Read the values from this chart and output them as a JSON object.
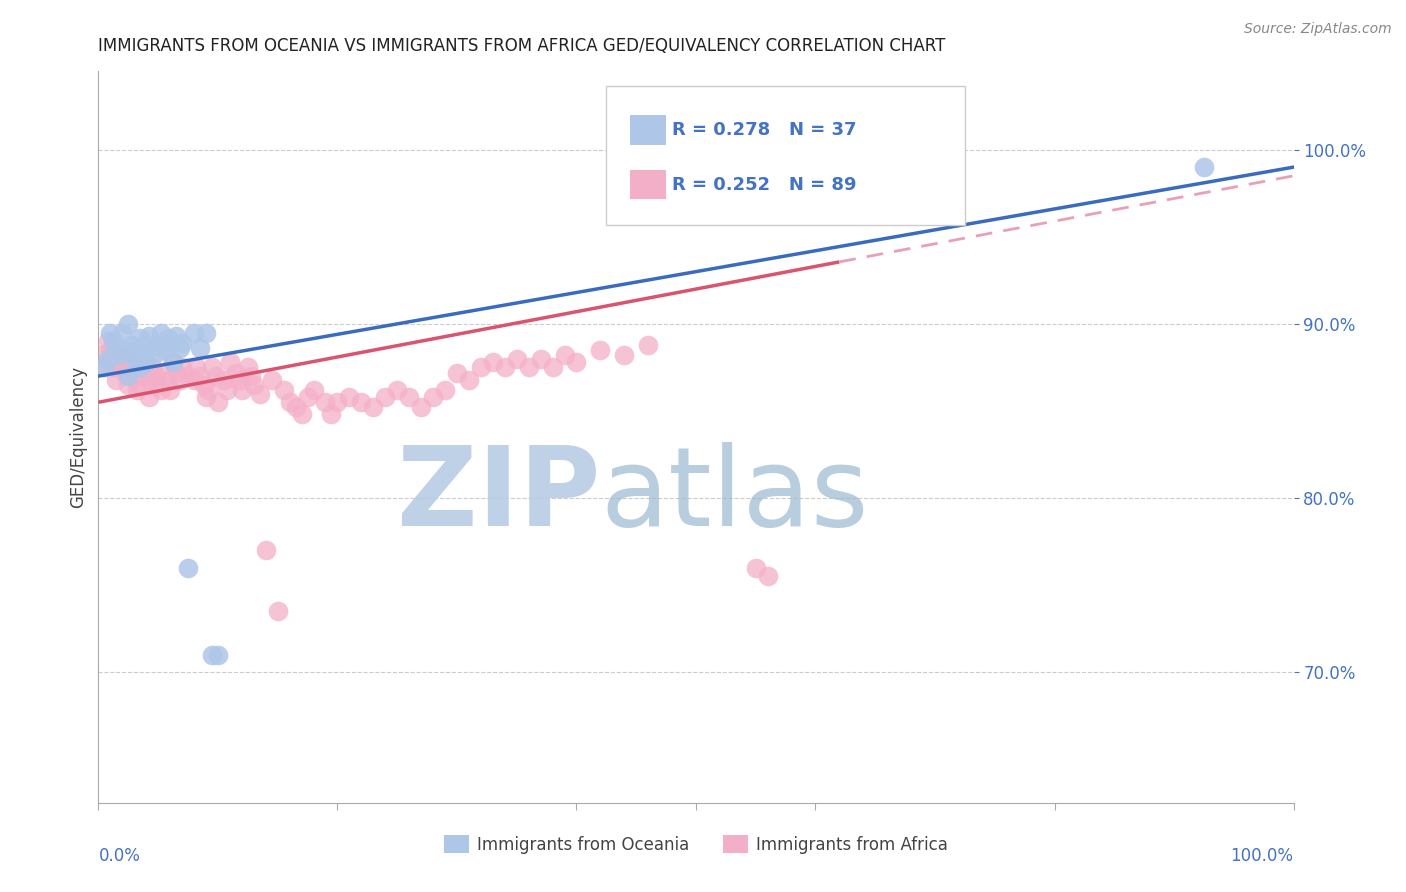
{
  "title": "IMMIGRANTS FROM OCEANIA VS IMMIGRANTS FROM AFRICA GED/EQUIVALENCY CORRELATION CHART",
  "source": "Source: ZipAtlas.com",
  "ylabel": "GED/Equivalency",
  "ytick_labels": [
    "70.0%",
    "80.0%",
    "90.0%",
    "100.0%"
  ],
  "ytick_values": [
    0.7,
    0.8,
    0.9,
    1.0
  ],
  "xmin": 0.0,
  "xmax": 1.0,
  "ymin": 0.625,
  "ymax": 1.045,
  "blue_color": "#aec6e8",
  "pink_color": "#f4afc8",
  "blue_line_color": "#3a6bbf",
  "pink_line_color": "#d9546e",
  "pink_line_dashed_color": "#e8a0b8",
  "legend_text_color": "#4472c4",
  "watermark_zip_color": "#b8cce4",
  "watermark_atlas_color": "#9ab8d0",
  "blue_x": [
    0.005,
    0.008,
    0.01,
    0.012,
    0.015,
    0.018,
    0.02,
    0.022,
    0.025,
    0.025,
    0.028,
    0.03,
    0.032,
    0.035,
    0.035,
    0.038,
    0.04,
    0.04,
    0.042,
    0.045,
    0.048,
    0.05,
    0.052,
    0.055,
    0.058,
    0.06,
    0.062,
    0.065,
    0.068,
    0.07,
    0.075,
    0.08,
    0.085,
    0.09,
    0.095,
    0.1,
    0.925
  ],
  "blue_y": [
    0.875,
    0.88,
    0.895,
    0.89,
    0.888,
    0.882,
    0.895,
    0.885,
    0.9,
    0.87,
    0.888,
    0.883,
    0.878,
    0.892,
    0.875,
    0.885,
    0.888,
    0.878,
    0.893,
    0.887,
    0.883,
    0.888,
    0.895,
    0.885,
    0.892,
    0.888,
    0.878,
    0.893,
    0.886,
    0.889,
    0.76,
    0.895,
    0.886,
    0.895,
    0.71,
    0.71,
    0.99
  ],
  "pink_x": [
    0.003,
    0.005,
    0.008,
    0.01,
    0.012,
    0.015,
    0.015,
    0.018,
    0.02,
    0.022,
    0.025,
    0.025,
    0.028,
    0.03,
    0.032,
    0.035,
    0.035,
    0.038,
    0.04,
    0.042,
    0.042,
    0.045,
    0.048,
    0.05,
    0.052,
    0.055,
    0.058,
    0.06,
    0.062,
    0.065,
    0.068,
    0.07,
    0.075,
    0.08,
    0.082,
    0.085,
    0.088,
    0.09,
    0.092,
    0.095,
    0.098,
    0.1,
    0.105,
    0.108,
    0.11,
    0.115,
    0.118,
    0.12,
    0.125,
    0.128,
    0.13,
    0.135,
    0.14,
    0.145,
    0.15,
    0.155,
    0.16,
    0.165,
    0.17,
    0.175,
    0.18,
    0.19,
    0.195,
    0.2,
    0.21,
    0.22,
    0.23,
    0.24,
    0.25,
    0.26,
    0.27,
    0.28,
    0.29,
    0.3,
    0.31,
    0.32,
    0.33,
    0.34,
    0.35,
    0.36,
    0.37,
    0.38,
    0.39,
    0.4,
    0.42,
    0.44,
    0.46,
    0.55,
    0.56
  ],
  "pink_y": [
    0.882,
    0.875,
    0.89,
    0.885,
    0.875,
    0.882,
    0.868,
    0.878,
    0.875,
    0.872,
    0.88,
    0.865,
    0.875,
    0.87,
    0.862,
    0.878,
    0.865,
    0.875,
    0.872,
    0.868,
    0.858,
    0.875,
    0.87,
    0.865,
    0.862,
    0.872,
    0.868,
    0.862,
    0.878,
    0.872,
    0.868,
    0.875,
    0.87,
    0.868,
    0.875,
    0.87,
    0.865,
    0.858,
    0.862,
    0.875,
    0.87,
    0.855,
    0.868,
    0.862,
    0.878,
    0.872,
    0.868,
    0.862,
    0.875,
    0.87,
    0.865,
    0.86,
    0.77,
    0.868,
    0.735,
    0.862,
    0.855,
    0.852,
    0.848,
    0.858,
    0.862,
    0.855,
    0.848,
    0.855,
    0.858,
    0.855,
    0.852,
    0.858,
    0.862,
    0.858,
    0.852,
    0.858,
    0.862,
    0.872,
    0.868,
    0.875,
    0.878,
    0.875,
    0.88,
    0.875,
    0.88,
    0.875,
    0.882,
    0.878,
    0.885,
    0.882,
    0.888,
    0.76,
    0.755
  ]
}
